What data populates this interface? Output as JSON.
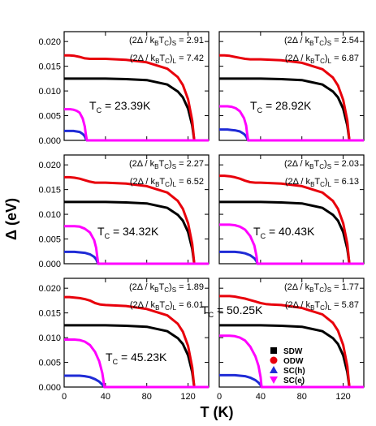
{
  "figure": {
    "ylabel": "Δ (eV)",
    "xlabel": "T (K)",
    "x_ticks": [
      "0",
      "40",
      "80",
      "120"
    ],
    "y_ticks": [
      "0.000",
      "0.005",
      "0.010",
      "0.015",
      "0.020"
    ],
    "legend": [
      {
        "label": "SDW",
        "marker": "square",
        "color": "#000000"
      },
      {
        "label": "ODW",
        "marker": "circle",
        "color": "#e8000b"
      },
      {
        "label": "SC(h)",
        "marker": "triangle-up",
        "color": "#1f2bd6"
      },
      {
        "label": "SC(e)",
        "marker": "triangle-down",
        "color": "#ff00ff"
      }
    ]
  },
  "chart_data": [
    {
      "type": "line",
      "tc_label": "23.39K",
      "ratio_s": "2.91",
      "ratio_l": "7.42",
      "xlim": [
        0,
        140
      ],
      "ylim": [
        0,
        0.022
      ],
      "series": [
        {
          "name": "SDW",
          "color": "#000000",
          "x": [
            0,
            20,
            40,
            60,
            80,
            100,
            110,
            115,
            120,
            124,
            126
          ],
          "y": [
            0.0125,
            0.0125,
            0.0125,
            0.0124,
            0.0122,
            0.0113,
            0.0099,
            0.0087,
            0.0064,
            0.003,
            0.0
          ]
        },
        {
          "name": "ODW",
          "color": "#e8000b",
          "x": [
            0,
            5,
            10,
            15,
            20,
            25,
            30,
            40,
            60,
            80,
            100,
            110,
            115,
            120,
            124,
            126
          ],
          "y": [
            0.0172,
            0.0172,
            0.0171,
            0.0169,
            0.0166,
            0.0165,
            0.0165,
            0.0165,
            0.0163,
            0.0158,
            0.0145,
            0.0128,
            0.0112,
            0.0083,
            0.004,
            0.0
          ]
        },
        {
          "name": "SC(h)",
          "color": "#1f2bd6",
          "x": [
            0,
            3,
            6,
            9,
            12,
            15,
            18,
            20,
            21,
            22,
            140
          ],
          "y": [
            0.0019,
            0.0019,
            0.0019,
            0.0019,
            0.0018,
            0.0017,
            0.0013,
            0.0008,
            0.0003,
            0.0,
            0.0
          ]
        },
        {
          "name": "SC(e)",
          "color": "#ff00ff",
          "x": [
            0,
            3,
            6,
            9,
            12,
            15,
            18,
            20,
            21,
            22,
            140
          ],
          "y": [
            0.0063,
            0.0063,
            0.0063,
            0.0062,
            0.006,
            0.0056,
            0.0044,
            0.0028,
            0.0012,
            0.0,
            0.0
          ]
        }
      ]
    },
    {
      "type": "line",
      "tc_label": "28.92K",
      "ratio_s": "2.54",
      "ratio_l": "6.87",
      "xlim": [
        0,
        140
      ],
      "ylim": [
        0,
        0.022
      ],
      "series": [
        {
          "name": "SDW",
          "color": "#000000",
          "x": [
            0,
            20,
            40,
            60,
            80,
            100,
            110,
            115,
            120,
            124,
            126
          ],
          "y": [
            0.0125,
            0.0125,
            0.0125,
            0.0124,
            0.0122,
            0.0113,
            0.0099,
            0.0087,
            0.0064,
            0.003,
            0.0
          ]
        },
        {
          "name": "ODW",
          "color": "#e8000b",
          "x": [
            0,
            5,
            10,
            15,
            20,
            25,
            30,
            40,
            60,
            80,
            100,
            110,
            115,
            120,
            124,
            126
          ],
          "y": [
            0.0172,
            0.0172,
            0.0171,
            0.0169,
            0.0167,
            0.0165,
            0.0164,
            0.0164,
            0.0162,
            0.0157,
            0.0144,
            0.0127,
            0.0111,
            0.0082,
            0.004,
            0.0
          ]
        },
        {
          "name": "SC(h)",
          "color": "#1f2bd6",
          "x": [
            0,
            4,
            8,
            12,
            16,
            20,
            24,
            26,
            27,
            28,
            140
          ],
          "y": [
            0.0022,
            0.0022,
            0.0022,
            0.0021,
            0.002,
            0.0018,
            0.0013,
            0.0008,
            0.0004,
            0.0,
            0.0
          ]
        },
        {
          "name": "SC(e)",
          "color": "#ff00ff",
          "x": [
            0,
            4,
            8,
            12,
            16,
            20,
            24,
            26,
            27,
            28,
            140
          ],
          "y": [
            0.0069,
            0.0069,
            0.0069,
            0.0068,
            0.0065,
            0.0059,
            0.0045,
            0.003,
            0.0014,
            0.0,
            0.0
          ]
        }
      ]
    },
    {
      "type": "line",
      "tc_label": "34.32K",
      "ratio_s": "2.27",
      "ratio_l": "6.52",
      "xlim": [
        0,
        140
      ],
      "ylim": [
        0,
        0.022
      ],
      "series": [
        {
          "name": "SDW",
          "color": "#000000",
          "x": [
            0,
            20,
            40,
            60,
            80,
            100,
            110,
            115,
            120,
            124,
            126
          ],
          "y": [
            0.0125,
            0.0125,
            0.0125,
            0.0124,
            0.0122,
            0.0113,
            0.0099,
            0.0087,
            0.0064,
            0.003,
            0.0
          ]
        },
        {
          "name": "ODW",
          "color": "#e8000b",
          "x": [
            0,
            5,
            10,
            15,
            20,
            25,
            30,
            35,
            40,
            60,
            80,
            100,
            110,
            115,
            120,
            124,
            126
          ],
          "y": [
            0.0175,
            0.0175,
            0.0174,
            0.0172,
            0.0169,
            0.0166,
            0.0164,
            0.0164,
            0.0164,
            0.0162,
            0.0157,
            0.0144,
            0.0127,
            0.0111,
            0.0082,
            0.004,
            0.0
          ]
        },
        {
          "name": "SC(h)",
          "color": "#1f2bd6",
          "x": [
            0,
            5,
            10,
            15,
            20,
            25,
            29,
            31,
            32,
            33,
            140
          ],
          "y": [
            0.0024,
            0.0024,
            0.0024,
            0.0023,
            0.0022,
            0.0019,
            0.0014,
            0.0009,
            0.0004,
            0.0,
            0.0
          ]
        },
        {
          "name": "SC(e)",
          "color": "#ff00ff",
          "x": [
            0,
            5,
            10,
            15,
            20,
            25,
            29,
            31,
            32,
            33,
            140
          ],
          "y": [
            0.0076,
            0.0076,
            0.0076,
            0.0075,
            0.0071,
            0.0063,
            0.0048,
            0.0032,
            0.0015,
            0.0,
            0.0
          ]
        }
      ]
    },
    {
      "type": "line",
      "tc_label": "40.43K",
      "ratio_s": "2.03",
      "ratio_l": "6.13",
      "xlim": [
        0,
        140
      ],
      "ylim": [
        0,
        0.022
      ],
      "series": [
        {
          "name": "SDW",
          "color": "#000000",
          "x": [
            0,
            20,
            40,
            60,
            80,
            100,
            110,
            115,
            120,
            124,
            126
          ],
          "y": [
            0.0125,
            0.0125,
            0.0125,
            0.0124,
            0.0122,
            0.0113,
            0.0099,
            0.0087,
            0.0064,
            0.003,
            0.0
          ]
        },
        {
          "name": "ODW",
          "color": "#e8000b",
          "x": [
            0,
            5,
            10,
            15,
            20,
            25,
            30,
            35,
            40,
            60,
            80,
            100,
            110,
            115,
            120,
            124,
            126
          ],
          "y": [
            0.0178,
            0.0178,
            0.0177,
            0.0175,
            0.0172,
            0.0168,
            0.0165,
            0.0164,
            0.0164,
            0.0162,
            0.0157,
            0.0144,
            0.0127,
            0.0111,
            0.0082,
            0.004,
            0.0
          ]
        },
        {
          "name": "SC(h)",
          "color": "#1f2bd6",
          "x": [
            0,
            5,
            10,
            15,
            20,
            25,
            30,
            34,
            36,
            37,
            140
          ],
          "y": [
            0.0024,
            0.0024,
            0.0024,
            0.0024,
            0.0023,
            0.0021,
            0.0017,
            0.0011,
            0.0005,
            0.0,
            0.0
          ]
        },
        {
          "name": "SC(e)",
          "color": "#ff00ff",
          "x": [
            0,
            5,
            10,
            15,
            20,
            25,
            30,
            34,
            36,
            37,
            140
          ],
          "y": [
            0.0079,
            0.0079,
            0.0079,
            0.0078,
            0.0075,
            0.0069,
            0.0056,
            0.0037,
            0.0016,
            0.0,
            0.0
          ]
        }
      ]
    },
    {
      "type": "line",
      "tc_label": "45.23K",
      "ratio_s": "1.89",
      "ratio_l": "6.01",
      "xlim": [
        0,
        140
      ],
      "ylim": [
        0,
        0.022
      ],
      "series": [
        {
          "name": "SDW",
          "color": "#000000",
          "x": [
            0,
            20,
            40,
            60,
            80,
            100,
            110,
            115,
            120,
            124,
            126
          ],
          "y": [
            0.0125,
            0.0125,
            0.0125,
            0.0124,
            0.0122,
            0.0113,
            0.0099,
            0.0087,
            0.0064,
            0.003,
            0.0
          ]
        },
        {
          "name": "ODW",
          "color": "#e8000b",
          "x": [
            0,
            5,
            10,
            15,
            20,
            25,
            30,
            35,
            40,
            60,
            80,
            100,
            110,
            115,
            120,
            124,
            126
          ],
          "y": [
            0.0182,
            0.0182,
            0.0181,
            0.018,
            0.0178,
            0.0175,
            0.017,
            0.0167,
            0.0166,
            0.0164,
            0.0158,
            0.0145,
            0.0128,
            0.0112,
            0.0083,
            0.004,
            0.0
          ]
        },
        {
          "name": "SC(h)",
          "color": "#1f2bd6",
          "x": [
            0,
            5,
            10,
            15,
            20,
            25,
            30,
            34,
            37,
            39,
            140
          ],
          "y": [
            0.0023,
            0.0023,
            0.0023,
            0.0023,
            0.0022,
            0.002,
            0.0016,
            0.0011,
            0.0005,
            0.0,
            0.0
          ]
        },
        {
          "name": "SC(e)",
          "color": "#ff00ff",
          "x": [
            0,
            5,
            10,
            15,
            20,
            25,
            30,
            34,
            37,
            39,
            140
          ],
          "y": [
            0.0096,
            0.0096,
            0.0096,
            0.0095,
            0.0092,
            0.0085,
            0.0071,
            0.0052,
            0.0028,
            0.0,
            0.0
          ]
        }
      ]
    },
    {
      "type": "line",
      "tc_label": "50.25K",
      "ratio_s": "1.77",
      "ratio_l": "5.87",
      "xlim": [
        0,
        140
      ],
      "ylim": [
        0,
        0.022
      ],
      "series": [
        {
          "name": "SDW",
          "color": "#000000",
          "x": [
            0,
            20,
            40,
            60,
            80,
            100,
            110,
            115,
            120,
            124,
            126
          ],
          "y": [
            0.0125,
            0.0125,
            0.0125,
            0.0124,
            0.0122,
            0.0113,
            0.0099,
            0.0087,
            0.0064,
            0.003,
            0.0
          ]
        },
        {
          "name": "ODW",
          "color": "#e8000b",
          "x": [
            0,
            5,
            10,
            15,
            20,
            25,
            30,
            35,
            40,
            45,
            50,
            60,
            80,
            100,
            110,
            115,
            120,
            124,
            126
          ],
          "y": [
            0.0184,
            0.0184,
            0.0184,
            0.0183,
            0.0181,
            0.0179,
            0.0176,
            0.0173,
            0.017,
            0.0168,
            0.0167,
            0.0166,
            0.016,
            0.0147,
            0.013,
            0.0114,
            0.0085,
            0.0042,
            0.0
          ]
        },
        {
          "name": "SC(h)",
          "color": "#1f2bd6",
          "x": [
            0,
            5,
            10,
            15,
            20,
            25,
            30,
            35,
            38,
            40,
            41,
            140
          ],
          "y": [
            0.0024,
            0.0024,
            0.0024,
            0.0024,
            0.0023,
            0.0022,
            0.0019,
            0.0014,
            0.0009,
            0.0004,
            0.0,
            0.0
          ]
        },
        {
          "name": "SC(e)",
          "color": "#ff00ff",
          "x": [
            0,
            5,
            10,
            15,
            20,
            25,
            30,
            35,
            38,
            40,
            41,
            140
          ],
          "y": [
            0.0104,
            0.0104,
            0.0104,
            0.0103,
            0.01,
            0.0094,
            0.0082,
            0.0062,
            0.0043,
            0.002,
            0.0,
            0.0
          ]
        }
      ]
    }
  ]
}
